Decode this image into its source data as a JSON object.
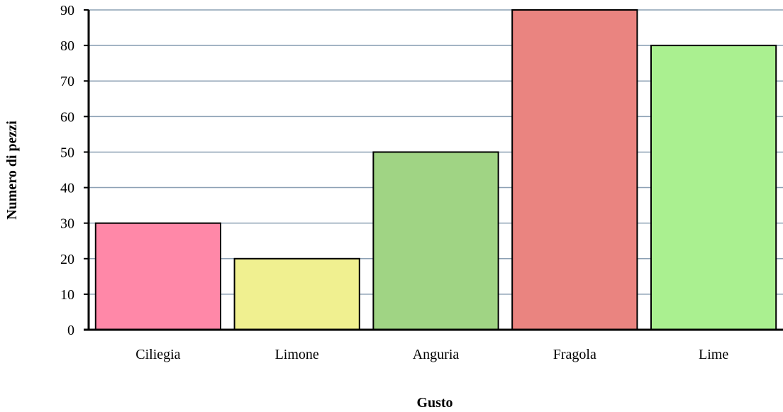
{
  "chart_data": {
    "type": "bar",
    "xlabel": "Gusto",
    "ylabel": "Numero di pezzi",
    "ylim": [
      0,
      90
    ],
    "yticks": [
      0,
      10,
      20,
      30,
      40,
      50,
      60,
      70,
      80,
      90
    ],
    "categories": [
      "Ciliegia",
      "Limone",
      "Anguria",
      "Fragola",
      "Lime"
    ],
    "values": [
      30,
      20,
      50,
      90,
      80
    ],
    "bar_colors": [
      "#ff88a8",
      "#f0f090",
      "#a0d484",
      "#ea8480",
      "#aaf090"
    ],
    "gridline_color": "#8ca0b4",
    "grid": true,
    "legend": "none"
  }
}
